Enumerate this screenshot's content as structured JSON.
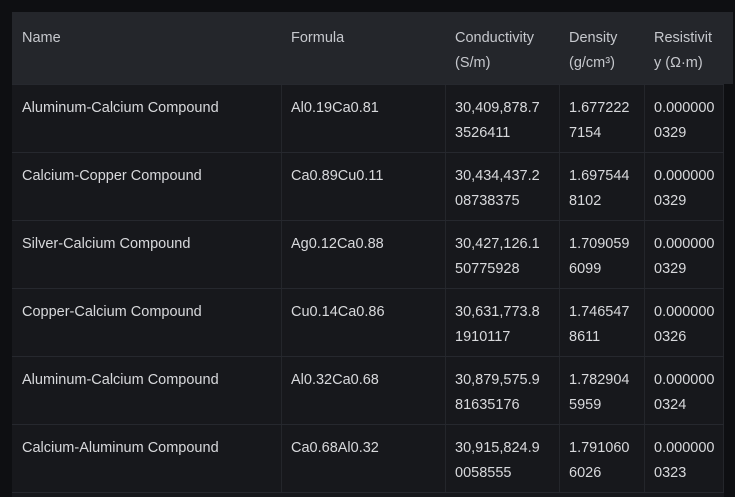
{
  "table": {
    "columns": [
      {
        "label": "Name"
      },
      {
        "label": "Formula"
      },
      {
        "label": "Conductivity (S/m)"
      },
      {
        "label": "Density (g/cm³)"
      },
      {
        "label": "Resistivity (Ω·m)"
      }
    ],
    "rows": [
      {
        "name": "Aluminum-Calcium Compound",
        "formula": "Al0.19Ca0.81",
        "conductivity": "30,409,878.73526411",
        "density": "1.6772227154",
        "resistivity": "0.0000000329"
      },
      {
        "name": "Calcium-Copper Compound",
        "formula": "Ca0.89Cu0.11",
        "conductivity": "30,434,437.208738375",
        "density": "1.6975448102",
        "resistivity": "0.0000000329"
      },
      {
        "name": "Silver-Calcium Compound",
        "formula": "Ag0.12Ca0.88",
        "conductivity": "30,427,126.150775928",
        "density": "1.7090596099",
        "resistivity": "0.0000000329"
      },
      {
        "name": "Copper-Calcium Compound",
        "formula": "Cu0.14Ca0.86",
        "conductivity": "30,631,773.81910117",
        "density": "1.7465478611",
        "resistivity": "0.0000000326"
      },
      {
        "name": "Aluminum-Calcium Compound",
        "formula": "Al0.32Ca0.68",
        "conductivity": "30,879,575.981635176",
        "density": "1.7829045959",
        "resistivity": "0.0000000324"
      },
      {
        "name": "Calcium-Aluminum Compound",
        "formula": "Ca0.68Al0.32",
        "conductivity": "30,915,824.90058555",
        "density": "1.7910606026",
        "resistivity": "0.0000000323"
      }
    ]
  },
  "colors": {
    "page_bg": "#0e0f12",
    "header_bg": "#24262b",
    "row_bg": "#17181c",
    "grid_line": "#26282e",
    "header_text": "#c6c8cd",
    "cell_text": "#d8d9dc"
  }
}
